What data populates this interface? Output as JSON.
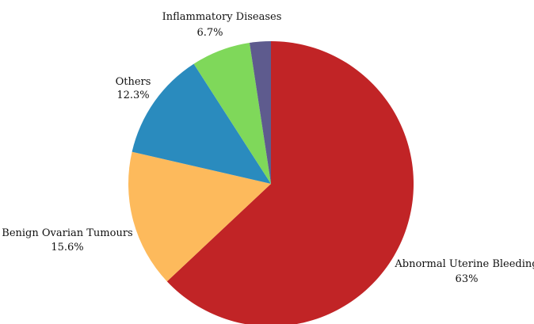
{
  "chart_data": {
    "type": "pie",
    "slices": [
      {
        "name": "Abnormal Uterine Bleeding",
        "value": 63,
        "value_label": "63%",
        "color": "#C12426"
      },
      {
        "name": "Benign Ovarian Tumours",
        "value": 15.6,
        "value_label": "15.6%",
        "color": "#FDBA5C"
      },
      {
        "name": "Others",
        "value": 12.3,
        "value_label": "12.3%",
        "color": "#2A8BBE"
      },
      {
        "name": "Inflammatory Diseases",
        "value": 6.7,
        "value_label": "6.7%",
        "color": "#7FD85A"
      },
      {
        "name": "",
        "value": 2.4,
        "value_label": "",
        "color": "#5E5B8E"
      }
    ],
    "start": "12 o'clock",
    "direction": "clockwise",
    "legend": "none"
  }
}
